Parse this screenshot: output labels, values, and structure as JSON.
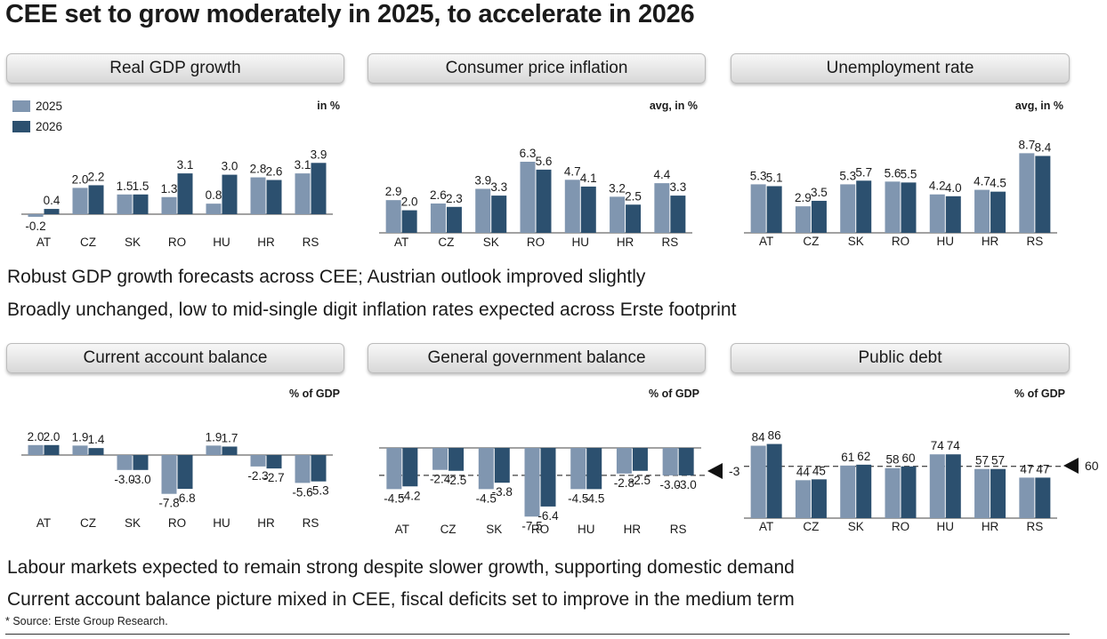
{
  "title": "CEE set to grow moderately in 2025, to accelerate in 2026",
  "legend": [
    "2025",
    "2026"
  ],
  "colors": {
    "series_2025": "#8096b0",
    "series_2026": "#2c506f",
    "axis": "#444444",
    "reference": "#111111"
  },
  "bullets": [
    "Robust GDP growth forecasts across CEE; Austrian outlook improved slightly",
    "Broadly unchanged, low to mid-single digit inflation rates expected across Erste footprint",
    "Labour markets expected to remain strong despite slower growth, supporting domestic demand",
    "Current account balance picture mixed in CEE, fiscal deficits set to improve in the medium term"
  ],
  "source": "* Source: Erste Group Research.",
  "chart_data": [
    {
      "type": "bar",
      "title": "Real GDP growth",
      "unit": "in %",
      "categories": [
        "AT",
        "CZ",
        "SK",
        "RO",
        "HU",
        "HR",
        "RS"
      ],
      "series": [
        {
          "name": "2025",
          "values": [
            -0.2,
            2.0,
            1.5,
            1.3,
            0.8,
            2.8,
            3.1
          ],
          "labels": [
            "-0.2",
            "2.0",
            "1.5",
            "1.3",
            "0.8",
            "2.8",
            "3.1"
          ]
        },
        {
          "name": "2026",
          "values": [
            0.4,
            2.2,
            1.5,
            3.1,
            3.0,
            2.6,
            3.9
          ],
          "labels": [
            "0.4",
            "2.2",
            "1.5",
            "3.1",
            "3.0",
            "2.6",
            "3.9"
          ]
        }
      ]
    },
    {
      "type": "bar",
      "title": "Consumer price inflation",
      "unit": "avg, in %",
      "categories": [
        "AT",
        "CZ",
        "SK",
        "RO",
        "HU",
        "HR",
        "RS"
      ],
      "series": [
        {
          "name": "2025",
          "values": [
            2.9,
            2.6,
            3.9,
            6.3,
            4.7,
            3.2,
            4.4
          ],
          "labels": [
            "2.9",
            "2.6",
            "3.9",
            "6.3",
            "4.7",
            "3.2",
            "4.4"
          ]
        },
        {
          "name": "2026",
          "values": [
            2.0,
            2.3,
            3.3,
            5.6,
            4.1,
            2.5,
            3.3
          ],
          "labels": [
            "2.0",
            "2.3",
            "3.3",
            "5.6",
            "4.1",
            "2.5",
            "3.3"
          ]
        }
      ]
    },
    {
      "type": "bar",
      "title": "Unemployment rate",
      "unit": "avg, in %",
      "categories": [
        "AT",
        "CZ",
        "SK",
        "RO",
        "HU",
        "HR",
        "RS"
      ],
      "series": [
        {
          "name": "2025",
          "values": [
            5.3,
            2.9,
            5.3,
            5.6,
            4.2,
            4.7,
            8.7
          ],
          "labels": [
            "5.3",
            "2.9",
            "5.3",
            "5.6",
            "4.2",
            "4.7",
            "8.7"
          ]
        },
        {
          "name": "2026",
          "values": [
            5.1,
            3.5,
            5.7,
            5.5,
            4.0,
            4.5,
            8.4
          ],
          "labels": [
            "5.1",
            "3.5",
            "5.7",
            "5.5",
            "4.0",
            "4.5",
            "8.4"
          ]
        }
      ]
    },
    {
      "type": "bar",
      "title": "Current account balance",
      "unit": "% of GDP",
      "categories": [
        "AT",
        "CZ",
        "SK",
        "RO",
        "HU",
        "HR",
        "RS"
      ],
      "series": [
        {
          "name": "2025",
          "values": [
            2.0,
            1.9,
            -3.0,
            -7.8,
            1.9,
            -2.3,
            -5.6
          ],
          "labels": [
            "2.0",
            "1.9",
            "-3.0",
            "-7.8",
            "1.9",
            "-2.3",
            "-5.6"
          ]
        },
        {
          "name": "2026",
          "values": [
            2.0,
            1.4,
            -3.0,
            -6.8,
            1.7,
            -2.7,
            -5.3
          ],
          "labels": [
            "2.0",
            "1.4",
            "-3.0",
            "-6.8",
            "1.7",
            "-2.7",
            "-5.3"
          ]
        }
      ]
    },
    {
      "type": "bar",
      "title": "General government balance",
      "unit": "% of GDP",
      "categories": [
        "AT",
        "CZ",
        "SK",
        "RO",
        "HU",
        "HR",
        "RS"
      ],
      "reference_line": {
        "value": -3,
        "label": "-3"
      },
      "series": [
        {
          "name": "2025",
          "values": [
            -4.5,
            -2.4,
            -4.5,
            -7.5,
            -4.5,
            -2.8,
            -3.0
          ],
          "labels": [
            "-4.5",
            "-2.4",
            "-4.5",
            "-7.5",
            "-4.5",
            "-2.8",
            "-3.0"
          ]
        },
        {
          "name": "2026",
          "values": [
            -4.2,
            -2.5,
            -3.8,
            -6.4,
            -4.5,
            -2.5,
            -3.0
          ],
          "labels": [
            "-4.2",
            "-2.5",
            "-3.8",
            "-6.4",
            "-4.5",
            "-2.5",
            "-3.0"
          ]
        }
      ]
    },
    {
      "type": "bar",
      "title": "Public debt",
      "unit": "% of GDP",
      "categories": [
        "AT",
        "CZ",
        "SK",
        "RO",
        "HU",
        "HR",
        "RS"
      ],
      "reference_line": {
        "value": 60,
        "label": "60"
      },
      "series": [
        {
          "name": "2025",
          "values": [
            84,
            44,
            61,
            58,
            74,
            57,
            47
          ],
          "labels": [
            "84",
            "44",
            "61",
            "58",
            "74",
            "57",
            "47"
          ]
        },
        {
          "name": "2026",
          "values": [
            86,
            45,
            62,
            60,
            74,
            57,
            47
          ],
          "labels": [
            "86",
            "45",
            "62",
            "60",
            "74",
            "57",
            "47"
          ]
        }
      ]
    }
  ]
}
